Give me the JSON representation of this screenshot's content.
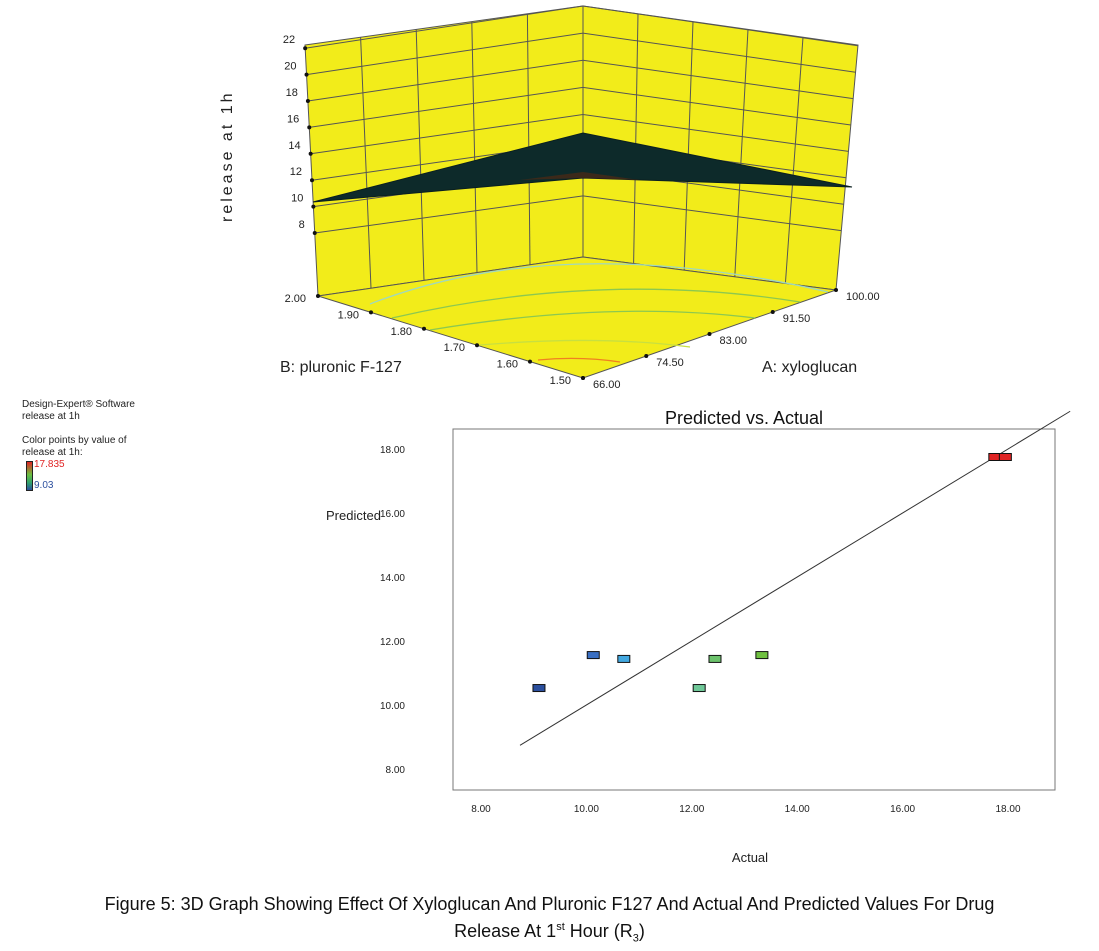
{
  "chart_data": [
    {
      "type": "surface3d",
      "zlabel": "release at 1h",
      "xlabel": "A: xyloglucan",
      "ylabel": "B: pluronic F-127",
      "z_ticks": [
        "8",
        "10",
        "12",
        "14",
        "16",
        "18",
        "20",
        "22"
      ],
      "x_ticks": [
        "66.00",
        "74.50",
        "83.00",
        "91.50",
        "100.00"
      ],
      "y_ticks": [
        "1.50",
        "1.60",
        "1.70",
        "1.80",
        "1.90",
        "2.00"
      ],
      "zlim": [
        8,
        22
      ],
      "surface_color": "#0d2a2a",
      "wall_color": "#f2ec1a",
      "surface_corners": [
        {
          "A": 66,
          "B": 2.0,
          "z": 10.2
        },
        {
          "A": 100,
          "B": 2.0,
          "z": 14.0
        },
        {
          "A": 100,
          "B": 1.5,
          "z": 11.3
        },
        {
          "A": 66,
          "B": 1.5,
          "z": 11.4
        }
      ]
    },
    {
      "type": "scatter",
      "title": "Predicted vs. Actual",
      "xlabel": "Actual",
      "ylabel": "Predicted",
      "xlim": [
        7.4,
        19.0
      ],
      "ylim": [
        7.4,
        18.6
      ],
      "x_ticks": [
        "8.00",
        "10.00",
        "12.00",
        "14.00",
        "16.00",
        "18.00"
      ],
      "y_ticks": [
        "8.00",
        "10.00",
        "12.00",
        "14.00",
        "16.00",
        "18.00"
      ],
      "points": [
        {
          "x": 9.1,
          "y": 10.53,
          "color": "#2b4f9e"
        },
        {
          "x": 10.13,
          "y": 11.56,
          "color": "#3a6fc2"
        },
        {
          "x": 10.71,
          "y": 11.44,
          "color": "#42a8e0"
        },
        {
          "x": 12.14,
          "y": 10.53,
          "color": "#6fc898"
        },
        {
          "x": 12.44,
          "y": 11.44,
          "color": "#6cc26c"
        },
        {
          "x": 13.33,
          "y": 11.56,
          "color": "#6fc040"
        },
        {
          "x": 17.75,
          "y": 17.75,
          "color": "#e02424"
        },
        {
          "x": 17.95,
          "y": 17.75,
          "color": "#e02424"
        }
      ],
      "reference_line": {
        "x": [
          8.74,
          19.18
        ],
        "y": [
          8.74,
          19.18
        ]
      }
    }
  ],
  "legend": {
    "software": "Design-Expert® Software",
    "response": "release at 1h",
    "color_label_1": "Color points by value of",
    "color_label_2": "release at 1h:",
    "max": "17.835",
    "min": "9.03",
    "max_color": "#e02424",
    "min_color": "#2b4f9e"
  },
  "caption": {
    "line1": "Figure 5: 3D Graph Showing Effect Of Xyloglucan And Pluronic F127 And Actual And Predicted Values For Drug",
    "line2_a": "Release At 1",
    "line2_sup": "st",
    "line2_b": " Hour (R",
    "line2_sub": "3",
    "line2_c": ")"
  }
}
